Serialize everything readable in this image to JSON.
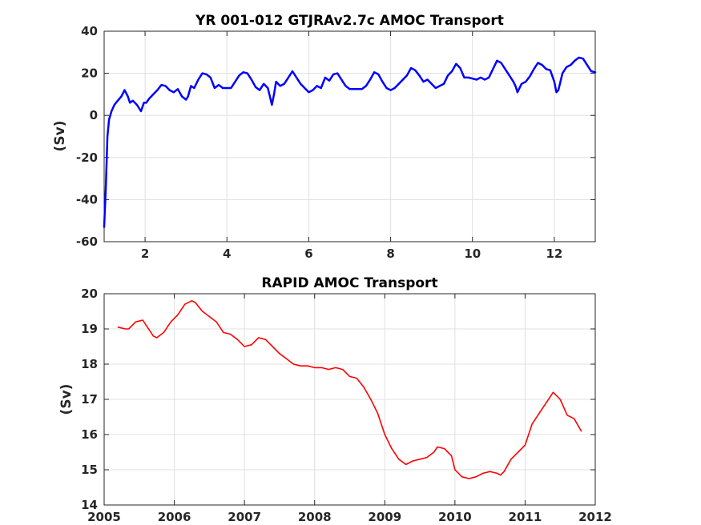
{
  "figure": {
    "background": "#ffffff"
  },
  "chart_data": [
    {
      "type": "line",
      "title": "YR 001-012 GTJRAv2.7c AMOC Transport",
      "xlabel": "",
      "ylabel": "(Sv)",
      "xlim": [
        1,
        13
      ],
      "ylim": [
        -60,
        40
      ],
      "xticks": [
        2,
        4,
        6,
        8,
        10,
        12
      ],
      "yticks": [
        -60,
        -40,
        -20,
        0,
        20,
        40
      ],
      "grid": true,
      "color": "#0000ff",
      "series": [
        {
          "x": [
            1.0,
            1.04,
            1.08,
            1.12,
            1.18,
            1.25,
            1.33,
            1.42,
            1.5,
            1.58,
            1.63,
            1.7,
            1.8,
            1.9,
            1.97,
            2.03,
            2.1,
            2.2,
            2.3,
            2.4,
            2.5,
            2.6,
            2.7,
            2.8,
            2.9,
            3.0,
            3.05,
            3.12,
            3.2,
            3.3,
            3.4,
            3.5,
            3.6,
            3.7,
            3.8,
            3.9,
            4.0,
            4.1,
            4.2,
            4.3,
            4.4,
            4.5,
            4.6,
            4.7,
            4.8,
            4.9,
            5.0,
            5.05,
            5.1,
            5.15,
            5.2,
            5.3,
            5.4,
            5.5,
            5.6,
            5.7,
            5.8,
            5.9,
            6.0,
            6.1,
            6.2,
            6.3,
            6.4,
            6.5,
            6.6,
            6.7,
            6.8,
            6.9,
            7.0,
            7.1,
            7.2,
            7.3,
            7.4,
            7.5,
            7.6,
            7.7,
            7.8,
            7.9,
            8.0,
            8.1,
            8.2,
            8.3,
            8.4,
            8.5,
            8.6,
            8.7,
            8.8,
            8.9,
            9.0,
            9.1,
            9.2,
            9.3,
            9.4,
            9.5,
            9.6,
            9.7,
            9.8,
            9.9,
            10.0,
            10.1,
            10.2,
            10.3,
            10.4,
            10.5,
            10.6,
            10.7,
            10.8,
            10.9,
            11.0,
            11.05,
            11.1,
            11.2,
            11.3,
            11.4,
            11.5,
            11.6,
            11.7,
            11.8,
            11.9,
            12.0,
            12.05,
            12.1,
            12.2,
            12.3,
            12.4,
            12.5,
            12.6,
            12.7,
            12.8,
            12.9,
            13.0
          ],
          "y": [
            -53.0,
            -35.0,
            -10.0,
            -2.0,
            2.0,
            5.0,
            7.0,
            9.0,
            12.0,
            9.0,
            6.0,
            7.0,
            5.0,
            2.0,
            6.0,
            6.0,
            8.0,
            10.0,
            12.0,
            14.5,
            14.0,
            12.0,
            11.0,
            12.5,
            9.0,
            7.5,
            9.0,
            14.0,
            13.0,
            17.0,
            20.0,
            19.5,
            18.0,
            13.0,
            14.5,
            13.0,
            13.0,
            13.0,
            16.0,
            19.0,
            20.5,
            20.0,
            17.0,
            13.5,
            12.0,
            15.0,
            13.0,
            9.0,
            5.0,
            10.0,
            16.0,
            14.0,
            15.0,
            18.0,
            21.0,
            18.0,
            15.0,
            13.0,
            11.0,
            12.0,
            14.0,
            13.0,
            18.0,
            16.5,
            19.5,
            20.0,
            17.0,
            14.0,
            12.5,
            12.5,
            12.5,
            12.5,
            14.0,
            17.0,
            20.5,
            19.5,
            16.0,
            13.0,
            12.0,
            13.0,
            15.0,
            17.0,
            19.0,
            22.5,
            21.5,
            19.0,
            16.0,
            17.0,
            15.0,
            13.0,
            14.0,
            15.0,
            19.0,
            21.0,
            24.5,
            22.5,
            18.0,
            18.0,
            17.5,
            17.0,
            18.0,
            17.0,
            18.0,
            22.0,
            26.0,
            25.0,
            22.0,
            19.0,
            16.0,
            14.0,
            11.0,
            15.0,
            16.0,
            18.5,
            22.0,
            25.0,
            24.0,
            22.0,
            21.5,
            16.0,
            11.0,
            12.0,
            20.0,
            23.0,
            24.0,
            26.0,
            27.5,
            27.0,
            24.0,
            21.0,
            20.5
          ]
        }
      ]
    },
    {
      "type": "line",
      "title": "RAPID AMOC Transport",
      "xlabel": "",
      "ylabel": "(Sv)",
      "xlim": [
        2005,
        2012
      ],
      "ylim": [
        14,
        20
      ],
      "xticks": [
        2005,
        2006,
        2007,
        2008,
        2009,
        2010,
        2011,
        2012
      ],
      "yticks": [
        14,
        15,
        16,
        17,
        18,
        19,
        20
      ],
      "grid": true,
      "color": "#ff0000",
      "series": [
        {
          "x": [
            2005.2,
            2005.3,
            2005.35,
            2005.45,
            2005.55,
            2005.6,
            2005.7,
            2005.75,
            2005.85,
            2005.95,
            2006.05,
            2006.15,
            2006.25,
            2006.3,
            2006.4,
            2006.5,
            2006.6,
            2006.7,
            2006.8,
            2006.9,
            2007.0,
            2007.1,
            2007.2,
            2007.3,
            2007.4,
            2007.5,
            2007.6,
            2007.7,
            2007.8,
            2007.9,
            2008.0,
            2008.1,
            2008.2,
            2008.3,
            2008.4,
            2008.5,
            2008.6,
            2008.7,
            2008.8,
            2008.9,
            2009.0,
            2009.1,
            2009.2,
            2009.3,
            2009.4,
            2009.5,
            2009.6,
            2009.7,
            2009.75,
            2009.85,
            2009.95,
            2010.0,
            2010.1,
            2010.2,
            2010.3,
            2010.4,
            2010.5,
            2010.6,
            2010.65,
            2010.7,
            2010.8,
            2010.9,
            2011.0,
            2011.1,
            2011.2,
            2011.3,
            2011.4,
            2011.5,
            2011.6,
            2011.7,
            2011.8
          ],
          "y": [
            19.05,
            19.0,
            19.0,
            19.2,
            19.25,
            19.1,
            18.8,
            18.75,
            18.9,
            19.2,
            19.4,
            19.7,
            19.8,
            19.75,
            19.5,
            19.35,
            19.2,
            18.9,
            18.85,
            18.7,
            18.5,
            18.55,
            18.75,
            18.7,
            18.5,
            18.3,
            18.15,
            18.0,
            17.95,
            17.95,
            17.9,
            17.9,
            17.85,
            17.9,
            17.85,
            17.65,
            17.6,
            17.35,
            17.0,
            16.6,
            16.0,
            15.6,
            15.3,
            15.15,
            15.25,
            15.3,
            15.35,
            15.5,
            15.65,
            15.6,
            15.4,
            15.0,
            14.8,
            14.75,
            14.8,
            14.9,
            14.95,
            14.9,
            14.85,
            14.95,
            15.3,
            15.5,
            15.7,
            16.3,
            16.6,
            16.9,
            17.2,
            17.0,
            16.55,
            16.45,
            16.1
          ]
        }
      ]
    }
  ]
}
